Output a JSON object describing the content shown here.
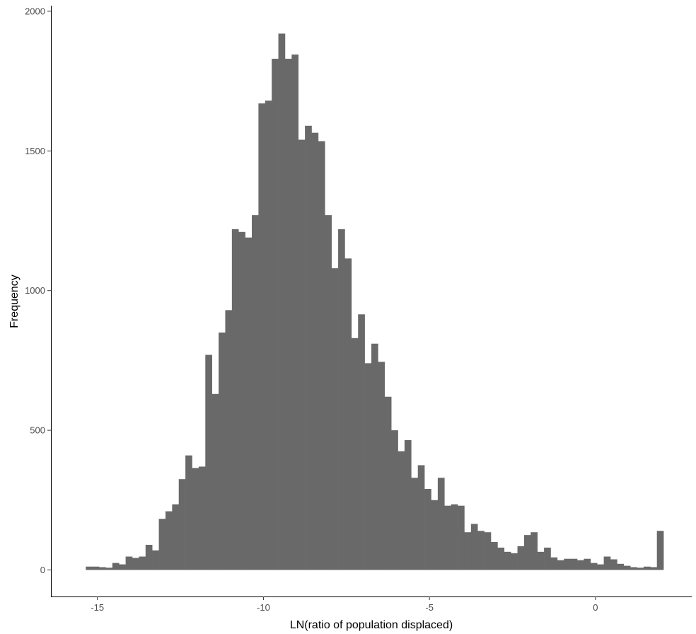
{
  "chart_data": {
    "type": "bar",
    "subtype": "histogram",
    "title": "",
    "xlabel": "LN(ratio of population displaced)",
    "ylabel": "Frequency",
    "bin_start": -15.35,
    "bin_width": 0.2,
    "values": [
      12,
      12,
      10,
      8,
      25,
      20,
      48,
      43,
      48,
      90,
      70,
      183,
      210,
      235,
      325,
      410,
      365,
      370,
      770,
      630,
      850,
      930,
      1220,
      1210,
      1190,
      1270,
      1670,
      1680,
      1830,
      1920,
      1830,
      1845,
      1540,
      1590,
      1565,
      1535,
      1270,
      1080,
      1220,
      1115,
      830,
      915,
      740,
      810,
      745,
      620,
      500,
      425,
      465,
      330,
      375,
      290,
      250,
      330,
      230,
      235,
      230,
      135,
      165,
      140,
      135,
      100,
      80,
      65,
      60,
      85,
      125,
      135,
      65,
      80,
      45,
      35,
      40,
      40,
      35,
      40,
      25,
      20,
      48,
      38,
      22,
      15,
      10,
      8,
      12,
      10,
      140
    ],
    "xlim": [
      -16.4,
      2.9
    ],
    "ylim": [
      -95,
      2020
    ],
    "xticks": [
      -15,
      -10,
      -5,
      0
    ],
    "xtick_labels": [
      "-15",
      "-10",
      "-5",
      "0"
    ],
    "yticks": [
      0,
      500,
      1000,
      1500,
      2000
    ],
    "ytick_labels": [
      "0",
      "500",
      "1000",
      "1500",
      "2000"
    ],
    "grid": false,
    "bar_color": "#696969"
  }
}
